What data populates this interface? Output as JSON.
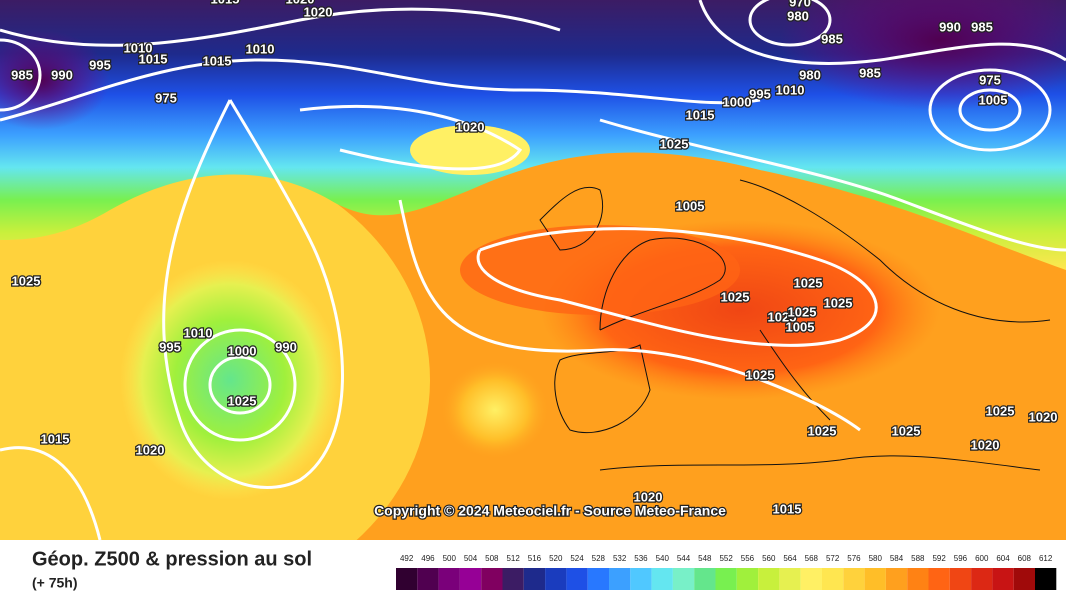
{
  "map": {
    "copyright": "Copyright © 2024 Meteociel.fr - Source Meteo-France",
    "isobar_labels": [
      1015,
      1020,
      1020,
      985,
      990,
      995,
      1010,
      1015,
      1015,
      1010,
      975,
      970,
      980,
      985,
      985,
      990,
      985,
      980,
      975,
      1005,
      1000,
      995,
      1010,
      1015,
      1025,
      1020,
      1005,
      1025,
      1025,
      1025,
      1025,
      1025,
      1025,
      1005,
      1010,
      995,
      1000,
      990,
      1025,
      1025,
      1025,
      1025,
      1025,
      1020,
      1020,
      1015,
      1020,
      1020,
      1015
    ],
    "color_scale": {
      "colors": [
        "#300030",
        "#500050",
        "#7a007a",
        "#960096",
        "#800060",
        "#3c1c64",
        "#1e2a8c",
        "#1a3cbe",
        "#1e50e6",
        "#2878ff",
        "#3ca0ff",
        "#50c8ff",
        "#64e6f0",
        "#78f0c8",
        "#64e68c",
        "#78f050",
        "#a0f03c",
        "#c8f03c",
        "#e6f050",
        "#fff064",
        "#ffe650",
        "#ffd23c",
        "#ffbe28",
        "#ffa01e",
        "#ff8214",
        "#ff6414",
        "#f04614",
        "#dc2814",
        "#c81414",
        "#a00a0a",
        "#000000"
      ]
    }
  },
  "legend": {
    "title": "Géop. Z500 & pression au sol",
    "subtitle": "(+ 75h)",
    "ticks": [
      492,
      496,
      500,
      504,
      508,
      512,
      516,
      520,
      524,
      528,
      532,
      536,
      540,
      544,
      548,
      552,
      556,
      560,
      564,
      568,
      572,
      576,
      580,
      584,
      588,
      592,
      596,
      600,
      604,
      608,
      612
    ]
  }
}
